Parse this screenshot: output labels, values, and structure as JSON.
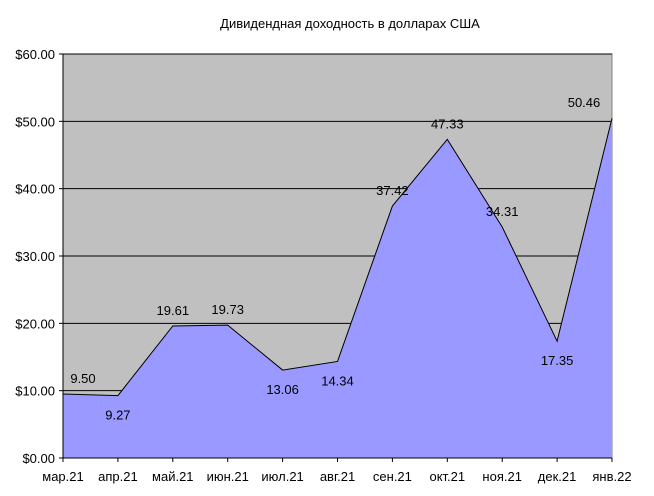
{
  "chart_data": {
    "type": "area",
    "title": "Дивидендная доходность в долларах США",
    "xlabel": "",
    "ylabel": "",
    "categories": [
      "мар.21",
      "апр.21",
      "май.21",
      "июн.21",
      "июл.21",
      "авг.21",
      "сен.21",
      "окт.21",
      "ноя.21",
      "дек.21",
      "янв.22"
    ],
    "series": [
      {
        "values": [
          9.5,
          9.27,
          19.61,
          19.73,
          13.06,
          14.34,
          37.42,
          47.33,
          34.31,
          17.35,
          50.46
        ],
        "labels": [
          "9.50",
          "9.27",
          "19.61",
          "19.73",
          "13.06",
          "14.34",
          "37.42",
          "47.33",
          "34.31",
          "17.35",
          "50.46"
        ],
        "label_positions": [
          "above",
          "below",
          "above",
          "above",
          "below",
          "below",
          "above",
          "above",
          "above",
          "below",
          "above"
        ]
      }
    ],
    "ylim": [
      0,
      60
    ],
    "yticks": [
      0,
      10,
      20,
      30,
      40,
      50,
      60
    ],
    "ytick_labels": [
      "$0.00",
      "$10.00",
      "$20.00",
      "$30.00",
      "$40.00",
      "$50.00",
      "$60.00"
    ],
    "grid": true,
    "legend": "none",
    "colors": {
      "plot_background": "#c0c0c0",
      "area_fill": "#9999ff",
      "line": "#000000",
      "gridline": "#000000"
    }
  }
}
